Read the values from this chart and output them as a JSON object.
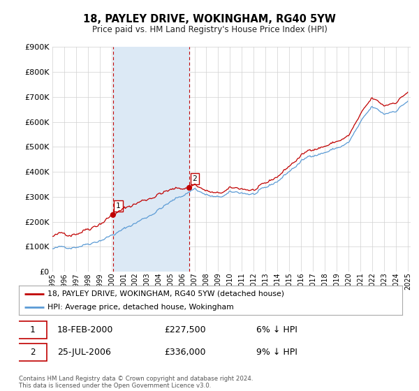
{
  "title": "18, PAYLEY DRIVE, WOKINGHAM, RG40 5YW",
  "subtitle": "Price paid vs. HM Land Registry's House Price Index (HPI)",
  "legend_line1": "18, PAYLEY DRIVE, WOKINGHAM, RG40 5YW (detached house)",
  "legend_line2": "HPI: Average price, detached house, Wokingham",
  "footnote": "Contains HM Land Registry data © Crown copyright and database right 2024.\nThis data is licensed under the Open Government Licence v3.0.",
  "transaction1_date": "18-FEB-2000",
  "transaction1_price": "£227,500",
  "transaction1_hpi": "6% ↓ HPI",
  "transaction2_date": "25-JUL-2006",
  "transaction2_price": "£336,000",
  "transaction2_hpi": "9% ↓ HPI",
  "hpi_color": "#5b9bd5",
  "price_color": "#c00000",
  "vline_color": "#c00000",
  "shade_color": "#dce9f5",
  "background_color": "#ffffff",
  "grid_color": "#d0d0d0",
  "ylim": [
    0,
    900000
  ],
  "yticks": [
    0,
    100000,
    200000,
    300000,
    400000,
    500000,
    600000,
    700000,
    800000,
    900000
  ],
  "sale1_year": 2000.12,
  "sale1_price": 227500,
  "sale2_year": 2006.56,
  "sale2_price": 336000
}
